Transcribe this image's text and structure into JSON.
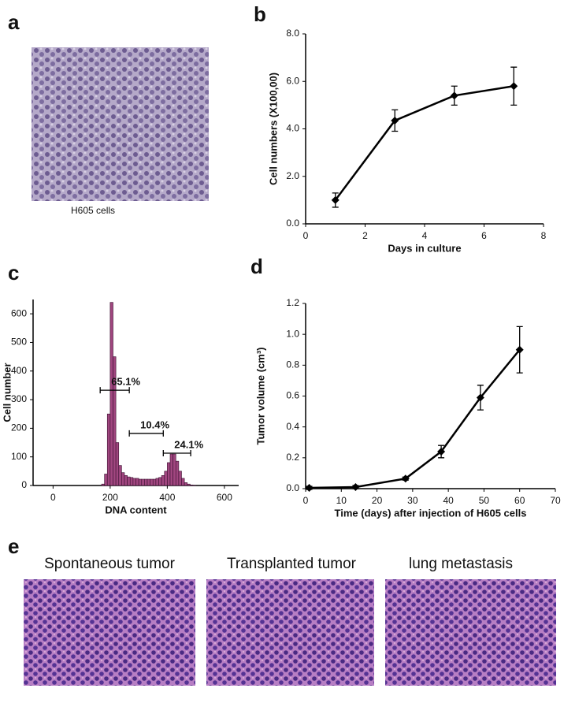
{
  "panels": [
    {
      "label": "a",
      "captions": [
        "H605 cells"
      ]
    },
    {
      "label": "e",
      "captions": [
        "Spontaneous tumor",
        "Transplanted tumor",
        "lung metastasis"
      ]
    }
  ],
  "chart_data": [
    {
      "label": "b",
      "type": "line",
      "color": "#000000",
      "x": [
        1,
        3,
        5,
        7
      ],
      "values": [
        1.0,
        4.35,
        5.4,
        5.8
      ],
      "errors": [
        0.3,
        0.45,
        0.4,
        0.8
      ],
      "xlim": [
        0,
        8
      ],
      "xticks": [
        0,
        2,
        4,
        6,
        8
      ],
      "ylim": [
        0,
        8
      ],
      "yticks": [
        {
          "value": 0,
          "label": "0.0"
        },
        {
          "value": 2,
          "label": "2.0"
        },
        {
          "value": 4,
          "label": "4.0"
        },
        {
          "value": 6,
          "label": "6.0"
        },
        {
          "value": 8,
          "label": "8.0"
        }
      ],
      "xlabel": "Days in culture",
      "ylabel": "Cell numbers (X100,00)"
    },
    {
      "label": "c",
      "type": "histogram",
      "color": "#a0467f",
      "bins": [
        170,
        180,
        190,
        200,
        210,
        220,
        230,
        240,
        250,
        260,
        270,
        280,
        290,
        300,
        310,
        320,
        330,
        340,
        350,
        360,
        370,
        380,
        390,
        400,
        410,
        420,
        430,
        440,
        450,
        460,
        470,
        480,
        490,
        500
      ],
      "counts": [
        5,
        40,
        250,
        640,
        450,
        150,
        70,
        45,
        35,
        30,
        28,
        25,
        25,
        22,
        22,
        22,
        22,
        22,
        22,
        25,
        28,
        35,
        50,
        80,
        110,
        110,
        85,
        50,
        25,
        10,
        5,
        2,
        1
      ],
      "xlim": [
        -70,
        650
      ],
      "xticks": [
        0,
        200,
        400,
        600
      ],
      "ylim": [
        0,
        650
      ],
      "yticks": [
        0,
        100,
        200,
        300,
        400,
        500,
        600
      ],
      "xlabel": "DNA content",
      "ylabel": "Cell number",
      "annotations": [
        {
          "text": "65.1%",
          "range": [
            165,
            267
          ],
          "y": 333
        },
        {
          "text": "10.4%",
          "range": [
            267,
            386
          ],
          "y": 182
        },
        {
          "text": "24.1%",
          "range": [
            386,
            482
          ],
          "y": 113
        }
      ]
    },
    {
      "label": "d",
      "type": "line",
      "color": "#000000",
      "x": [
        1,
        14,
        28,
        38,
        49,
        60
      ],
      "values": [
        0.005,
        0.01,
        0.065,
        0.24,
        0.59,
        0.9
      ],
      "errors": [
        0.01,
        0.01,
        0.01,
        0.04,
        0.08,
        0.15
      ],
      "xlim": [
        0,
        70
      ],
      "xticks": [
        0,
        10,
        20,
        30,
        40,
        50,
        60,
        70
      ],
      "ylim": [
        0,
        1.2
      ],
      "yticks": [
        {
          "value": 0,
          "label": "0.0"
        },
        {
          "value": 0.2,
          "label": "0.2"
        },
        {
          "value": 0.4,
          "label": "0.4"
        },
        {
          "value": 0.6,
          "label": "0.6"
        },
        {
          "value": 0.8,
          "label": "0.8"
        },
        {
          "value": 1.0,
          "label": "1.0"
        },
        {
          "value": 1.2,
          "label": "1.2"
        }
      ],
      "xlabel": "Time (days) after injection of H605 cells",
      "ylabel": "Tumor volume (cm³)"
    }
  ]
}
